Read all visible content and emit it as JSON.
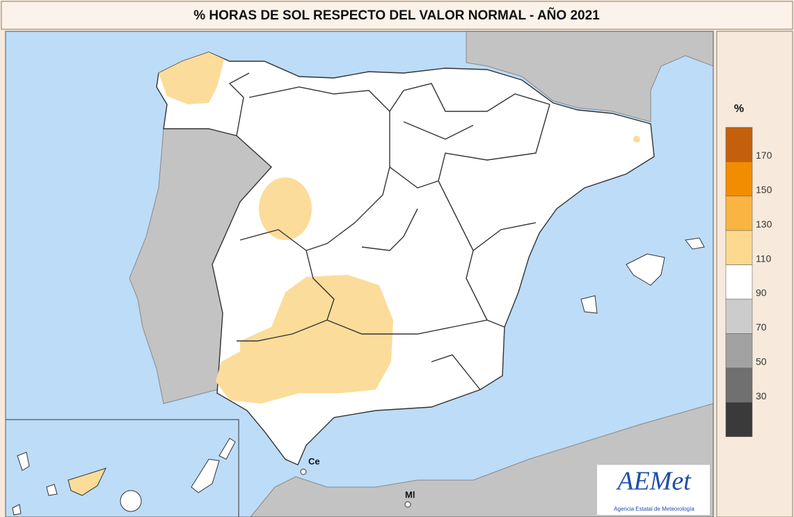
{
  "header": {
    "title": "% HORAS DE SOL RESPECTO DEL VALOR NORMAL - AÑO 2021"
  },
  "legend": {
    "title": "%",
    "colors": [
      "#c4600c",
      "#f28c00",
      "#f9b441",
      "#fcd98f",
      "#ffffff",
      "#cccccc",
      "#a2a2a2",
      "#707070",
      "#3a3a3a"
    ],
    "ticks": [
      170,
      150,
      130,
      110,
      90,
      70,
      50,
      30
    ]
  },
  "map": {
    "places": [
      "Ce",
      "Ml"
    ]
  },
  "logo": {
    "name": "AEMet",
    "subtitle": "Agencia Estatal de Meteorología"
  }
}
